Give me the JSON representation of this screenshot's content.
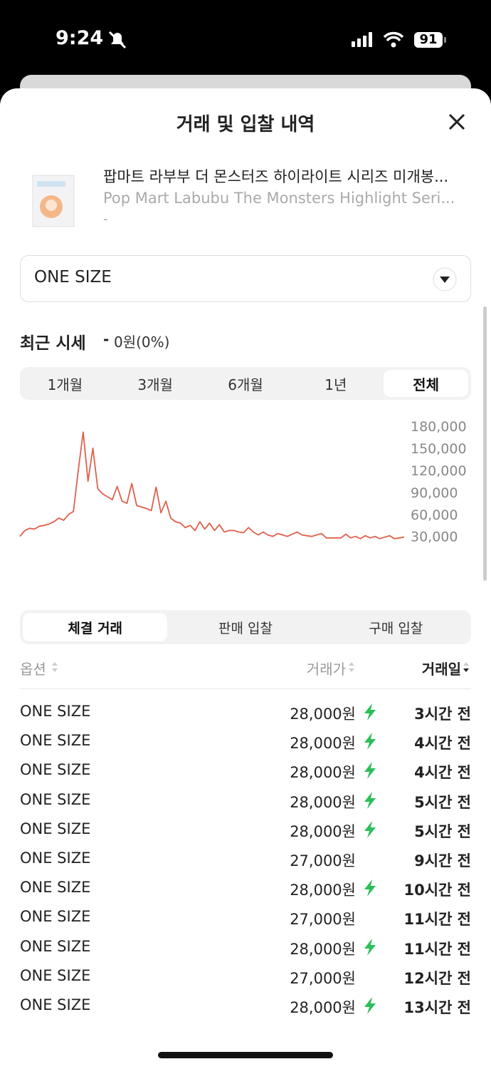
{
  "status_bar": {
    "time": "9:24",
    "battery": "91"
  },
  "header": {
    "title": "거래 및 입찰 내역"
  },
  "product": {
    "name_ko": "팝마트 라부부 더 몬스터즈 하이라이트 시리즈 미개봉...",
    "name_en": "Pop Mart Labubu The Monsters Highlight Seri...",
    "sub": "-"
  },
  "size_select": "ONE SIZE",
  "price_section": {
    "title": "최근 시세",
    "change_sign": "-",
    "change": "0원(0%)"
  },
  "period_tabs": {
    "items": [
      "1개월",
      "3개월",
      "6개월",
      "1년",
      "전체"
    ],
    "active": 4
  },
  "chart_data": {
    "type": "line",
    "color": "#e0604c",
    "values": [
      30000,
      38000,
      41000,
      40000,
      44000,
      45000,
      47000,
      50000,
      55000,
      52000,
      60000,
      64000,
      120000,
      172000,
      105000,
      150000,
      95000,
      88000,
      84000,
      80000,
      98000,
      78000,
      75000,
      102000,
      72000,
      70000,
      68000,
      65000,
      97000,
      62000,
      78000,
      55000,
      50000,
      48000,
      42000,
      45000,
      38000,
      50000,
      40000,
      48000,
      38000,
      46000,
      36000,
      38000,
      38000,
      36000,
      35000,
      42000,
      36000,
      32000,
      36000,
      32000,
      30000,
      34000,
      32000,
      30000,
      33000,
      36000,
      32000,
      31000,
      30000,
      32000,
      34000,
      28000,
      28000,
      28000,
      28000,
      33000,
      28000,
      30000,
      27000,
      31000,
      28000,
      30000,
      27000,
      29000,
      31000,
      27000,
      28000,
      29000
    ],
    "ylim": [
      20000,
      180000
    ],
    "yticks": [
      {
        "value": 180000,
        "label": "180,000"
      },
      {
        "value": 150000,
        "label": "150,000"
      },
      {
        "value": 120000,
        "label": "120,000"
      },
      {
        "value": 90000,
        "label": "90,000"
      },
      {
        "value": 60000,
        "label": "60,000"
      },
      {
        "value": 30000,
        "label": "30,000"
      }
    ]
  },
  "trade_tabs": {
    "items": [
      "체결 거래",
      "판매 입찰",
      "구매 입찰"
    ],
    "active": 0
  },
  "table": {
    "columns": [
      "옵션",
      "거래가",
      "거래일"
    ],
    "rows": [
      {
        "option": "ONE SIZE",
        "price": "28,000원",
        "fast": true,
        "date": "3시간 전"
      },
      {
        "option": "ONE SIZE",
        "price": "28,000원",
        "fast": true,
        "date": "4시간 전"
      },
      {
        "option": "ONE SIZE",
        "price": "28,000원",
        "fast": true,
        "date": "4시간 전"
      },
      {
        "option": "ONE SIZE",
        "price": "28,000원",
        "fast": true,
        "date": "5시간 전"
      },
      {
        "option": "ONE SIZE",
        "price": "28,000원",
        "fast": true,
        "date": "5시간 전"
      },
      {
        "option": "ONE SIZE",
        "price": "27,000원",
        "fast": false,
        "date": "9시간 전"
      },
      {
        "option": "ONE SIZE",
        "price": "28,000원",
        "fast": true,
        "date": "10시간 전"
      },
      {
        "option": "ONE SIZE",
        "price": "27,000원",
        "fast": false,
        "date": "11시간 전"
      },
      {
        "option": "ONE SIZE",
        "price": "28,000원",
        "fast": true,
        "date": "11시간 전"
      },
      {
        "option": "ONE SIZE",
        "price": "27,000원",
        "fast": false,
        "date": "12시간 전"
      },
      {
        "option": "ONE SIZE",
        "price": "28,000원",
        "fast": true,
        "date": "13시간 전"
      }
    ]
  }
}
